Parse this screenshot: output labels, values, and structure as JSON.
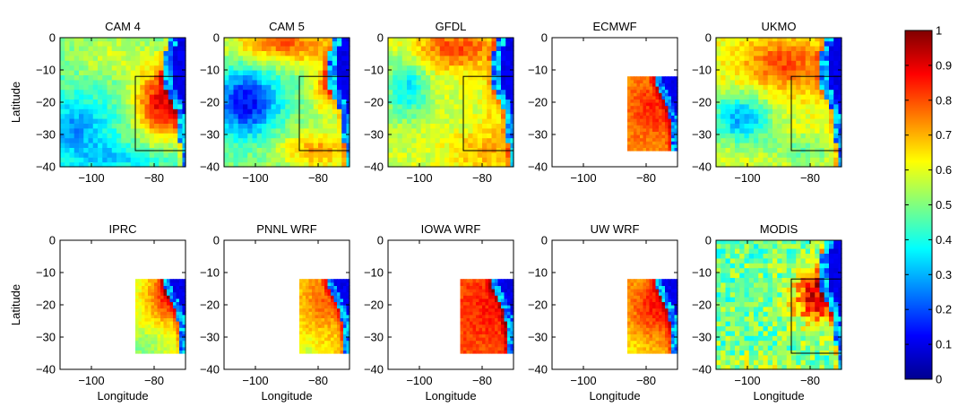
{
  "chart_data": {
    "type": "heatmap",
    "panels": [
      {
        "title": "CAM 4",
        "field": "cam4",
        "coverage": "full",
        "box": true,
        "ylabel": "Latitude",
        "xlabel": ""
      },
      {
        "title": "CAM 5",
        "field": "cam5",
        "coverage": "full",
        "box": true,
        "ylabel": "",
        "xlabel": ""
      },
      {
        "title": "GFDL",
        "field": "gfdl",
        "coverage": "full",
        "box": true,
        "ylabel": "",
        "xlabel": ""
      },
      {
        "title": "ECMWF",
        "field": "ecmwf",
        "coverage": "region",
        "box": false,
        "ylabel": "",
        "xlabel": ""
      },
      {
        "title": "UKMO",
        "field": "ukmo",
        "coverage": "full",
        "box": true,
        "ylabel": "",
        "xlabel": ""
      },
      {
        "title": "IPRC",
        "field": "iprc",
        "coverage": "region",
        "box": false,
        "ylabel": "Latitude",
        "xlabel": "Longitude"
      },
      {
        "title": "PNNL WRF",
        "field": "pnnl",
        "coverage": "region",
        "box": false,
        "ylabel": "",
        "xlabel": "Longitude"
      },
      {
        "title": "IOWA WRF",
        "field": "iowa",
        "coverage": "region",
        "box": false,
        "ylabel": "",
        "xlabel": "Longitude"
      },
      {
        "title": "UW WRF",
        "field": "uwwrf",
        "coverage": "region",
        "box": false,
        "ylabel": "",
        "xlabel": "Longitude"
      },
      {
        "title": "MODIS",
        "field": "modis",
        "coverage": "full",
        "box": true,
        "ylabel": "",
        "xlabel": "Longitude"
      }
    ],
    "xlim": [
      -110,
      -70
    ],
    "ylim": [
      -40,
      0
    ],
    "xticks": [
      -100,
      -80
    ],
    "yticks": [
      0,
      -10,
      -20,
      -30,
      -40
    ],
    "analysis_box": {
      "lon": [
        -86,
        -70
      ],
      "lat": [
        -35,
        -12
      ]
    },
    "region_lon": [
      -86,
      -70
    ],
    "region_lat": [
      -35,
      -12
    ],
    "colorbar": {
      "colormap": "jet",
      "range": [
        0,
        1
      ],
      "ticks": [
        "0",
        "0.1",
        "0.2",
        "0.3",
        "0.4",
        "0.5",
        "0.6",
        "0.7",
        "0.8",
        "0.9",
        "1"
      ]
    }
  }
}
